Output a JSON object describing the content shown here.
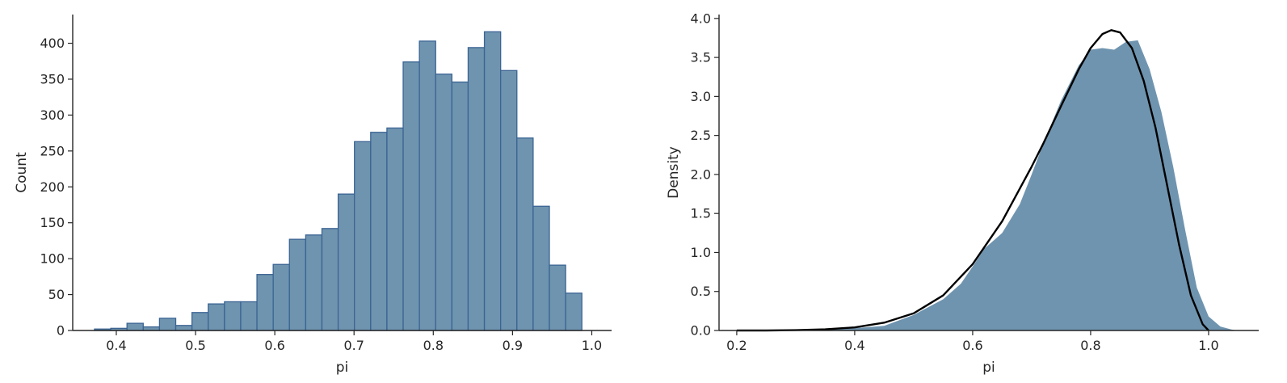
{
  "colors": {
    "fill": "#6f94af",
    "edge": "#3b6493",
    "curve": "#000000",
    "axis": "#262626"
  },
  "chart_data": [
    {
      "type": "bar",
      "subtype": "histogram",
      "xlabel": "pi",
      "ylabel": "Count",
      "xlim": [
        0.345,
        1.025
      ],
      "ylim": [
        0,
        440
      ],
      "xticks": [
        0.4,
        0.5,
        0.6,
        0.7,
        0.8,
        0.9,
        1.0
      ],
      "xtick_labels": [
        "0.4",
        "0.5",
        "0.6",
        "0.7",
        "0.8",
        "0.9",
        "1.0"
      ],
      "yticks": [
        0,
        50,
        100,
        150,
        200,
        250,
        300,
        350,
        400
      ],
      "ytick_labels": [
        "0",
        "50",
        "100",
        "150",
        "200",
        "250",
        "300",
        "350",
        "400"
      ],
      "bin_edges": [
        0.3725,
        0.393,
        0.4135,
        0.434,
        0.4545,
        0.475,
        0.4955,
        0.516,
        0.5365,
        0.557,
        0.5775,
        0.598,
        0.6185,
        0.639,
        0.6595,
        0.68,
        0.7005,
        0.721,
        0.7415,
        0.762,
        0.7825,
        0.803,
        0.8235,
        0.844,
        0.8645,
        0.885,
        0.9055,
        0.926,
        0.9465,
        0.967,
        0.9875
      ],
      "values": [
        2,
        3,
        10,
        5,
        17,
        7,
        25,
        37,
        40,
        40,
        78,
        92,
        127,
        133,
        142,
        190,
        263,
        276,
        282,
        374,
        403,
        357,
        346,
        394,
        416,
        362,
        268,
        173,
        91,
        52
      ],
      "grid": false
    },
    {
      "type": "area",
      "subtype": "density",
      "xlabel": "pi",
      "ylabel": "Density",
      "xlim": [
        0.17,
        1.085
      ],
      "ylim": [
        0,
        4.05
      ],
      "xticks": [
        0.2,
        0.4,
        0.6,
        0.8,
        1.0
      ],
      "xtick_labels": [
        "0.2",
        "0.4",
        "0.6",
        "0.8",
        "1.0"
      ],
      "yticks": [
        0,
        0.5,
        1.0,
        1.5,
        2.0,
        2.5,
        3.0,
        3.5,
        4.0
      ],
      "ytick_labels": [
        "0.0",
        "0.5",
        "1.0",
        "1.5",
        "2.0",
        "2.5",
        "3.0",
        "3.5",
        "4.0"
      ],
      "series": [
        {
          "kind": "kde-fill",
          "x": [
            0.2,
            0.25,
            0.3,
            0.35,
            0.4,
            0.45,
            0.5,
            0.55,
            0.58,
            0.6,
            0.62,
            0.65,
            0.68,
            0.7,
            0.72,
            0.75,
            0.78,
            0.8,
            0.82,
            0.84,
            0.86,
            0.88,
            0.9,
            0.92,
            0.94,
            0.96,
            0.98,
            1.0,
            1.02,
            1.04,
            1.05
          ],
          "y": [
            0.0,
            0.0,
            0.01,
            0.015,
            0.03,
            0.06,
            0.2,
            0.4,
            0.6,
            0.82,
            1.05,
            1.25,
            1.62,
            2.0,
            2.4,
            2.95,
            3.4,
            3.6,
            3.62,
            3.6,
            3.7,
            3.72,
            3.35,
            2.8,
            2.1,
            1.3,
            0.55,
            0.18,
            0.05,
            0.01,
            0.0
          ]
        },
        {
          "kind": "fitted-curve",
          "x": [
            0.2,
            0.25,
            0.3,
            0.35,
            0.4,
            0.45,
            0.5,
            0.55,
            0.6,
            0.65,
            0.7,
            0.72,
            0.75,
            0.78,
            0.8,
            0.82,
            0.835,
            0.85,
            0.87,
            0.89,
            0.91,
            0.93,
            0.95,
            0.97,
            0.99,
            1.0
          ],
          "y": [
            0.0,
            0.0,
            0.005,
            0.015,
            0.04,
            0.1,
            0.22,
            0.45,
            0.85,
            1.4,
            2.1,
            2.4,
            2.88,
            3.35,
            3.62,
            3.8,
            3.85,
            3.82,
            3.62,
            3.2,
            2.6,
            1.85,
            1.1,
            0.45,
            0.08,
            0.0
          ]
        }
      ],
      "grid": false
    }
  ]
}
